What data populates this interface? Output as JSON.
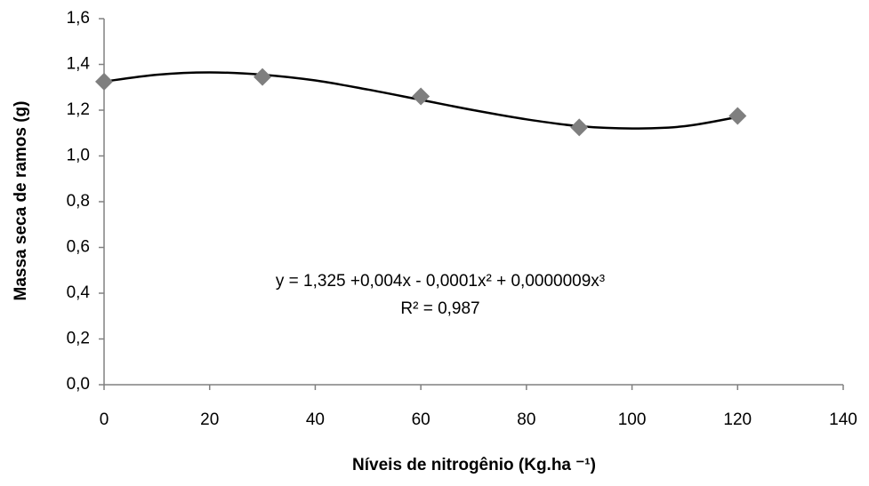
{
  "chart_data": {
    "type": "scatter",
    "x_label": "Níveis de nitrogênio (Kg.ha ⁻¹)",
    "y_label": "Massa seca de ramos (g)",
    "series": [
      {
        "name": "Massa seca",
        "color": "#7f7f7f",
        "x": [
          0,
          30,
          60,
          90,
          120
        ],
        "values": [
          1.325,
          1.345,
          1.26,
          1.125,
          1.175
        ]
      }
    ],
    "trendline": {
      "color": "#000000",
      "x": [
        0,
        10,
        20,
        30,
        40,
        50,
        60,
        70,
        80,
        90,
        100,
        110,
        120
      ],
      "values": [
        1.325,
        1.355,
        1.365,
        1.355,
        1.33,
        1.29,
        1.245,
        1.2,
        1.16,
        1.13,
        1.12,
        1.13,
        1.17
      ]
    },
    "annotations": [
      "y = 1,325 +0,004x - 0,0001x² + 0,0000009x³",
      "R² = 0,987"
    ],
    "xlim": [
      0,
      140
    ],
    "xticks": [
      0,
      20,
      40,
      60,
      80,
      100,
      120,
      140
    ],
    "ylim": [
      0,
      1.6
    ],
    "yticks": [
      {
        "value": 0,
        "label": "0,0"
      },
      {
        "value": 0.2,
        "label": "0,2"
      },
      {
        "value": 0.4,
        "label": "0,4"
      },
      {
        "value": 0.6,
        "label": "0,6"
      },
      {
        "value": 0.8,
        "label": "0,8"
      },
      {
        "value": 1.0,
        "label": "1,0"
      },
      {
        "value": 1.2,
        "label": "1,2"
      },
      {
        "value": 1.4,
        "label": "1,4"
      },
      {
        "value": 1.6,
        "label": "1,6"
      }
    ],
    "grid": false
  }
}
